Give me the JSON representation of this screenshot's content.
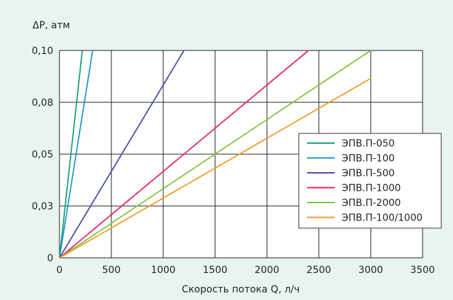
{
  "chart_data": {
    "type": "line",
    "ylabel": "ΔP, атм",
    "xlabel": "Скорость потока Q, л/ч",
    "xlim": [
      0,
      3500
    ],
    "ylim": [
      0,
      0.1
    ],
    "x_ticks": [
      0,
      500,
      1000,
      1500,
      2000,
      2500,
      3000,
      3500
    ],
    "x_tick_labels": [
      "0",
      "500",
      "1000",
      "1500",
      "2000",
      "2500",
      "3000",
      "3500"
    ],
    "y_ticks": [
      0,
      0.025,
      0.05,
      0.075,
      0.1
    ],
    "y_tick_labels": [
      "0",
      "0,03",
      "0,05",
      "0,08",
      "0,10"
    ],
    "grid": true,
    "legend_position": "center-right",
    "series": [
      {
        "name": "ЭПВ.П-050",
        "color": "#1a9e7a",
        "x": [
          0,
          220
        ],
        "y": [
          0,
          0.1
        ]
      },
      {
        "name": "ЭПВ.П-100",
        "color": "#1f97c9",
        "x": [
          0,
          320
        ],
        "y": [
          0,
          0.1
        ]
      },
      {
        "name": "ЭПВ.П-500",
        "color": "#4b4ba6",
        "x": [
          0,
          1200
        ],
        "y": [
          0,
          0.1
        ]
      },
      {
        "name": "ЭПВ.П-1000",
        "color": "#e0246c",
        "x": [
          0,
          2400
        ],
        "y": [
          0,
          0.1
        ]
      },
      {
        "name": "ЭПВ.П-2000",
        "color": "#82c23f",
        "x": [
          0,
          3000
        ],
        "y": [
          0,
          0.1
        ]
      },
      {
        "name": "ЭПВ.П-100/1000",
        "color": "#f39a28",
        "x": [
          0,
          3000
        ],
        "y": [
          0,
          0.0865
        ]
      }
    ]
  }
}
